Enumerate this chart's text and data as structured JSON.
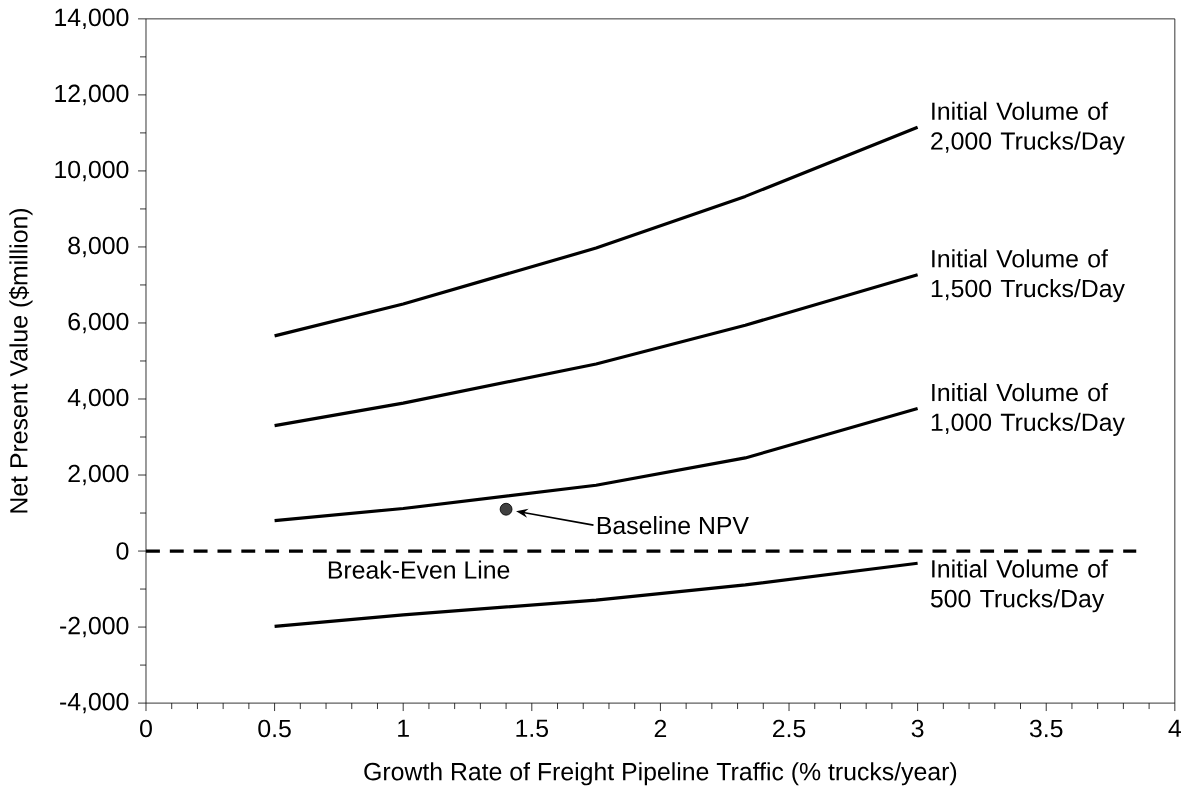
{
  "chart_data": {
    "type": "line",
    "xlabel": "Growth Rate of Freight Pipeline Traffic (% trucks/year)",
    "ylabel": "Net Present Value ($million)",
    "xlim": [
      0,
      4
    ],
    "ylim": [
      -4000,
      14000
    ],
    "xticks": [
      0,
      0.5,
      1,
      1.5,
      2,
      2.5,
      3,
      3.5,
      4
    ],
    "yticks": [
      {
        "value": -4000,
        "label": "-4,000"
      },
      {
        "value": -2000,
        "label": "-2,000"
      },
      {
        "value": 0,
        "label": "0"
      },
      {
        "value": 2000,
        "label": "2,000"
      },
      {
        "value": 4000,
        "label": "4,000"
      },
      {
        "value": 6000,
        "label": "6,000"
      },
      {
        "value": 8000,
        "label": "8,000"
      },
      {
        "value": 10000,
        "label": "10,000"
      },
      {
        "value": 12000,
        "label": "12,000"
      },
      {
        "value": 14000,
        "label": "14,000"
      }
    ],
    "marker": "none",
    "line_style": "solid",
    "x": [
      0.5,
      1,
      1.75,
      2.33,
      3
    ],
    "series": [
      {
        "name": "Initial Volume of 2,000 Trucks/Day",
        "color": "#000000",
        "values": [
          5660,
          6500,
          7970,
          9330,
          11150
        ]
      },
      {
        "name": "Initial Volume of 1,500 Trucks/Day",
        "color": "#000000",
        "values": [
          3300,
          3890,
          4920,
          5940,
          7270
        ]
      },
      {
        "name": "Initial Volume of 1,000 Trucks/Day",
        "color": "#000000",
        "values": [
          800,
          1120,
          1730,
          2450,
          3750
        ]
      },
      {
        "name": "Initial Volume of 500 Trucks/Day",
        "color": "#000000",
        "values": [
          -1980,
          -1680,
          -1290,
          -890,
          -320
        ]
      },
      {
        "type": "line",
        "line_style": "dashed",
        "color": "#000000",
        "x": [
          0,
          3.85
        ],
        "values": [
          0,
          0
        ]
      },
      {
        "type": "scatter",
        "name": "Baseline NPV",
        "marker": "circle",
        "color": "#404040",
        "x": [
          1.4
        ],
        "values": [
          1100
        ]
      }
    ],
    "annotations": [
      "Break-Even Line"
    ]
  }
}
